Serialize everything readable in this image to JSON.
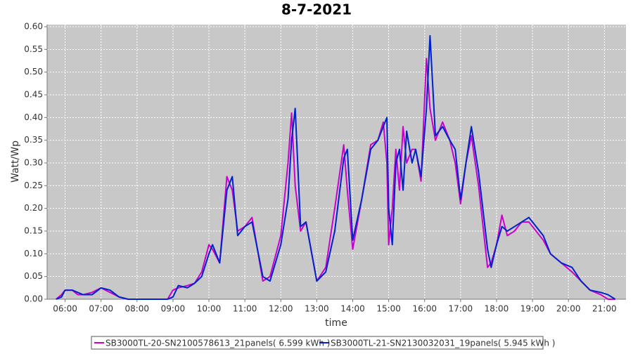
{
  "chart_data": {
    "type": "line",
    "title": "8-7-2021",
    "x_label": "time",
    "y_label": "Watt/Wp",
    "x": [
      5.75,
      5.9,
      6.0,
      6.2,
      6.35,
      6.5,
      6.75,
      7.0,
      7.25,
      7.5,
      7.75,
      8.5,
      8.85,
      9.0,
      9.15,
      9.4,
      9.6,
      9.8,
      10.0,
      10.1,
      10.3,
      10.5,
      10.65,
      10.8,
      11.0,
      11.2,
      11.5,
      11.7,
      12.0,
      12.2,
      12.3,
      12.4,
      12.55,
      12.7,
      13.0,
      13.25,
      13.5,
      13.75,
      13.85,
      14.0,
      14.25,
      14.5,
      14.7,
      14.85,
      14.95,
      15.0,
      15.1,
      15.2,
      15.3,
      15.4,
      15.5,
      15.65,
      15.75,
      15.9,
      16.05,
      16.15,
      16.3,
      16.5,
      16.7,
      16.85,
      17.0,
      17.15,
      17.3,
      17.5,
      17.75,
      17.85,
      18.0,
      18.15,
      18.3,
      18.5,
      18.7,
      18.9,
      19.1,
      19.3,
      19.5,
      19.8,
      20.1,
      20.35,
      20.6,
      20.9,
      21.1,
      21.3
    ],
    "series": [
      {
        "name": "SB3000TL-20-SN2100578613_21panels( 6.599 kWh )",
        "color": "#cc00cc",
        "values": [
          0,
          0.01,
          0.02,
          0.02,
          0.01,
          0.01,
          0.015,
          0.025,
          0.015,
          0.005,
          0,
          0,
          0,
          0.02,
          0.025,
          0.03,
          0.035,
          0.06,
          0.12,
          0.11,
          0.08,
          0.27,
          0.24,
          0.15,
          0.16,
          0.18,
          0.04,
          0.05,
          0.14,
          0.3,
          0.41,
          0.25,
          0.15,
          0.17,
          0.04,
          0.07,
          0.2,
          0.34,
          0.24,
          0.11,
          0.22,
          0.34,
          0.35,
          0.39,
          0.3,
          0.12,
          0.2,
          0.33,
          0.24,
          0.38,
          0.3,
          0.33,
          0.33,
          0.26,
          0.53,
          0.42,
          0.35,
          0.39,
          0.35,
          0.3,
          0.21,
          0.3,
          0.36,
          0.25,
          0.07,
          0.08,
          0.12,
          0.185,
          0.14,
          0.15,
          0.17,
          0.17,
          0.15,
          0.13,
          0.1,
          0.08,
          0.06,
          0.04,
          0.02,
          0.01,
          0,
          0
        ]
      },
      {
        "name": "SB3000TL-21-SN2130032031_19panels( 5.945 kWh )",
        "color": "#0022cc",
        "values": [
          0,
          0.005,
          0.02,
          0.02,
          0.015,
          0.01,
          0.01,
          0.025,
          0.02,
          0.005,
          0,
          0,
          0,
          0.005,
          0.03,
          0.025,
          0.035,
          0.05,
          0.1,
          0.12,
          0.08,
          0.24,
          0.27,
          0.14,
          0.16,
          0.17,
          0.05,
          0.04,
          0.12,
          0.22,
          0.35,
          0.42,
          0.16,
          0.17,
          0.04,
          0.06,
          0.15,
          0.31,
          0.33,
          0.13,
          0.22,
          0.33,
          0.35,
          0.38,
          0.4,
          0.2,
          0.12,
          0.3,
          0.33,
          0.24,
          0.37,
          0.3,
          0.33,
          0.27,
          0.42,
          0.58,
          0.36,
          0.38,
          0.35,
          0.33,
          0.22,
          0.3,
          0.38,
          0.28,
          0.11,
          0.07,
          0.12,
          0.16,
          0.15,
          0.16,
          0.17,
          0.18,
          0.16,
          0.14,
          0.1,
          0.08,
          0.07,
          0.04,
          0.02,
          0.015,
          0.01,
          0
        ]
      }
    ],
    "xlim": [
      5.5,
      21.6
    ],
    "ylim": [
      0,
      0.6
    ],
    "xticks": [
      {
        "value": 6,
        "label": "06:00"
      },
      {
        "value": 7,
        "label": "07:00"
      },
      {
        "value": 8,
        "label": "08:00"
      },
      {
        "value": 9,
        "label": "09:00"
      },
      {
        "value": 10,
        "label": "10:00"
      },
      {
        "value": 11,
        "label": "11:00"
      },
      {
        "value": 12,
        "label": "12:00"
      },
      {
        "value": 13,
        "label": "13:00"
      },
      {
        "value": 14,
        "label": "14:00"
      },
      {
        "value": 15,
        "label": "15:00"
      },
      {
        "value": 16,
        "label": "16:00"
      },
      {
        "value": 17,
        "label": "17:00"
      },
      {
        "value": 18,
        "label": "18:00"
      },
      {
        "value": 19,
        "label": "19:00"
      },
      {
        "value": 20,
        "label": "20:00"
      },
      {
        "value": 21,
        "label": "21:00"
      }
    ],
    "yticks": [
      {
        "value": 0,
        "label": "0.00"
      },
      {
        "value": 0.05,
        "label": "0.05"
      },
      {
        "value": 0.1,
        "label": "0.10"
      },
      {
        "value": 0.15,
        "label": "0.15"
      },
      {
        "value": 0.2,
        "label": "0.20"
      },
      {
        "value": 0.25,
        "label": "0.25"
      },
      {
        "value": 0.3,
        "label": "0.30"
      },
      {
        "value": 0.35,
        "label": "0.35"
      },
      {
        "value": 0.4,
        "label": "0.40"
      },
      {
        "value": 0.45,
        "label": "0.45"
      },
      {
        "value": 0.5,
        "label": "0.50"
      },
      {
        "value": 0.55,
        "label": "0.55"
      },
      {
        "value": 0.6,
        "label": "0.60"
      }
    ],
    "grid": true
  }
}
